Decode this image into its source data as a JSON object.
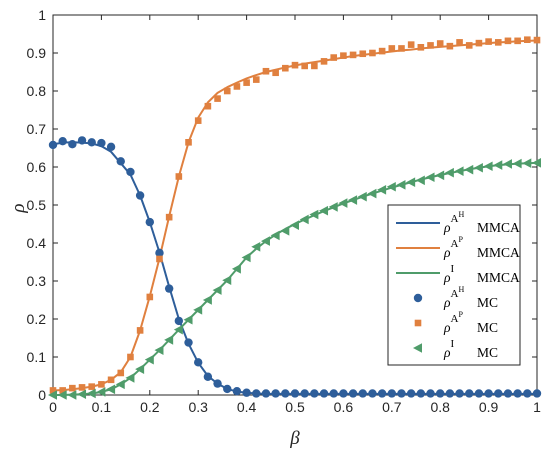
{
  "chart_data": {
    "type": "line",
    "xlabel": "β",
    "ylabel": "ρ",
    "xlim": [
      0,
      1
    ],
    "ylim": [
      0,
      1
    ],
    "xticks": [
      "0",
      "0.1",
      "0.2",
      "0.3",
      "0.4",
      "0.5",
      "0.6",
      "0.7",
      "0.8",
      "0.9",
      "1"
    ],
    "yticks": [
      "0",
      "0.1",
      "0.2",
      "0.3",
      "0.4",
      "0.5",
      "0.6",
      "0.7",
      "0.8",
      "0.9",
      "1"
    ],
    "grid": false,
    "legend_position": "right-middle",
    "beta": [
      0,
      0.02,
      0.04,
      0.06,
      0.08,
      0.1,
      0.12,
      0.14,
      0.16,
      0.18,
      0.2,
      0.22,
      0.24,
      0.26,
      0.28,
      0.3,
      0.32,
      0.34,
      0.36,
      0.38,
      0.4,
      0.42,
      0.44,
      0.46,
      0.48,
      0.5,
      0.52,
      0.54,
      0.56,
      0.58,
      0.6,
      0.62,
      0.64,
      0.66,
      0.68,
      0.7,
      0.72,
      0.74,
      0.76,
      0.78,
      0.8,
      0.82,
      0.84,
      0.86,
      0.88,
      0.9,
      0.92,
      0.94,
      0.96,
      0.98,
      1.0
    ],
    "series": [
      {
        "kind": "line",
        "group": "AH",
        "color": "#2e5e9a",
        "values": [
          0.66,
          0.664,
          0.665,
          0.664,
          0.662,
          0.655,
          0.64,
          0.61,
          0.58,
          0.525,
          0.455,
          0.375,
          0.285,
          0.2,
          0.135,
          0.085,
          0.05,
          0.03,
          0.016,
          0.009,
          0.006,
          0.004,
          0.003,
          0.003,
          0.003,
          0.003,
          0.003,
          0.003,
          0.003,
          0.003,
          0.003,
          0.003,
          0.003,
          0.003,
          0.003,
          0.003,
          0.003,
          0.003,
          0.003,
          0.003,
          0.003,
          0.003,
          0.003,
          0.003,
          0.003,
          0.003,
          0.003,
          0.003,
          0.003,
          0.003,
          0.003
        ]
      },
      {
        "kind": "line",
        "group": "AP",
        "color": "#e0803f",
        "values": [
          0.012,
          0.013,
          0.015,
          0.018,
          0.022,
          0.028,
          0.04,
          0.06,
          0.1,
          0.17,
          0.26,
          0.36,
          0.47,
          0.575,
          0.665,
          0.73,
          0.77,
          0.795,
          0.81,
          0.822,
          0.833,
          0.842,
          0.85,
          0.856,
          0.862,
          0.867,
          0.872,
          0.876,
          0.88,
          0.884,
          0.888,
          0.892,
          0.895,
          0.898,
          0.901,
          0.904,
          0.907,
          0.909,
          0.912,
          0.914,
          0.916,
          0.918,
          0.92,
          0.922,
          0.924,
          0.926,
          0.928,
          0.929,
          0.931,
          0.932,
          0.933
        ]
      },
      {
        "kind": "line",
        "group": "I",
        "color": "#4f9c6a",
        "values": [
          0.0,
          0.0,
          0.001,
          0.002,
          0.004,
          0.008,
          0.015,
          0.028,
          0.045,
          0.068,
          0.093,
          0.118,
          0.145,
          0.172,
          0.198,
          0.224,
          0.25,
          0.276,
          0.302,
          0.332,
          0.362,
          0.385,
          0.405,
          0.422,
          0.437,
          0.45,
          0.462,
          0.473,
          0.484,
          0.494,
          0.504,
          0.513,
          0.522,
          0.53,
          0.538,
          0.546,
          0.553,
          0.56,
          0.567,
          0.573,
          0.579,
          0.584,
          0.589,
          0.594,
          0.598,
          0.602,
          0.605,
          0.607,
          0.609,
          0.61,
          0.611
        ]
      },
      {
        "kind": "markers",
        "group": "AH",
        "marker": "circle",
        "color": "#2e5e9a",
        "values": [
          0.658,
          0.668,
          0.66,
          0.67,
          0.665,
          0.663,
          0.653,
          0.615,
          0.587,
          0.525,
          0.455,
          0.374,
          0.28,
          0.195,
          0.138,
          0.086,
          0.048,
          0.03,
          0.016,
          0.01,
          0.006,
          0.004,
          0.004,
          0.004,
          0.004,
          0.004,
          0.004,
          0.004,
          0.004,
          0.004,
          0.004,
          0.004,
          0.004,
          0.004,
          0.004,
          0.004,
          0.004,
          0.004,
          0.004,
          0.004,
          0.004,
          0.004,
          0.004,
          0.004,
          0.004,
          0.004,
          0.004,
          0.004,
          0.004,
          0.004,
          0.004
        ]
      },
      {
        "kind": "markers",
        "group": "AP",
        "marker": "square",
        "color": "#e0803f",
        "values": [
          0.012,
          0.012,
          0.018,
          0.02,
          0.022,
          0.028,
          0.04,
          0.058,
          0.1,
          0.17,
          0.258,
          0.358,
          0.468,
          0.575,
          0.665,
          0.722,
          0.76,
          0.78,
          0.8,
          0.812,
          0.822,
          0.83,
          0.852,
          0.848,
          0.86,
          0.868,
          0.866,
          0.866,
          0.878,
          0.888,
          0.893,
          0.895,
          0.898,
          0.9,
          0.905,
          0.912,
          0.912,
          0.922,
          0.915,
          0.92,
          0.925,
          0.918,
          0.928,
          0.92,
          0.926,
          0.93,
          0.928,
          0.932,
          0.932,
          0.935,
          0.934
        ]
      },
      {
        "kind": "markers",
        "group": "I",
        "marker": "triangle-left",
        "color": "#4f9c6a",
        "values": [
          0.0,
          0.0,
          0.0,
          0.002,
          0.004,
          0.008,
          0.015,
          0.028,
          0.045,
          0.068,
          0.093,
          0.118,
          0.145,
          0.172,
          0.198,
          0.224,
          0.25,
          0.276,
          0.302,
          0.332,
          0.362,
          0.39,
          0.405,
          0.42,
          0.432,
          0.447,
          0.462,
          0.475,
          0.485,
          0.495,
          0.505,
          0.513,
          0.522,
          0.53,
          0.54,
          0.548,
          0.553,
          0.56,
          0.565,
          0.573,
          0.578,
          0.585,
          0.589,
          0.593,
          0.598,
          0.602,
          0.605,
          0.608,
          0.609,
          0.61,
          0.611
        ]
      }
    ],
    "legend": [
      {
        "group": "AH",
        "style": "line",
        "color": "#2e5e9a",
        "symbol": "ρ",
        "sup_base": "A",
        "sup_sup": "H",
        "method": "MMCA"
      },
      {
        "group": "AP",
        "style": "line",
        "color": "#e0803f",
        "symbol": "ρ",
        "sup_base": "A",
        "sup_sup": "P",
        "method": "MMCA"
      },
      {
        "group": "I",
        "style": "line",
        "color": "#4f9c6a",
        "symbol": "ρ",
        "sup_base": "I",
        "sup_sup": "",
        "method": "MMCA"
      },
      {
        "group": "AH",
        "style": "circle",
        "color": "#2e5e9a",
        "symbol": "ρ",
        "sup_base": "A",
        "sup_sup": "H",
        "method": "MC"
      },
      {
        "group": "AP",
        "style": "square",
        "color": "#e0803f",
        "symbol": "ρ",
        "sup_base": "A",
        "sup_sup": "P",
        "method": "MC"
      },
      {
        "group": "I",
        "style": "triangle-left",
        "color": "#4f9c6a",
        "symbol": "ρ",
        "sup_base": "I",
        "sup_sup": "",
        "method": "MC"
      }
    ]
  }
}
